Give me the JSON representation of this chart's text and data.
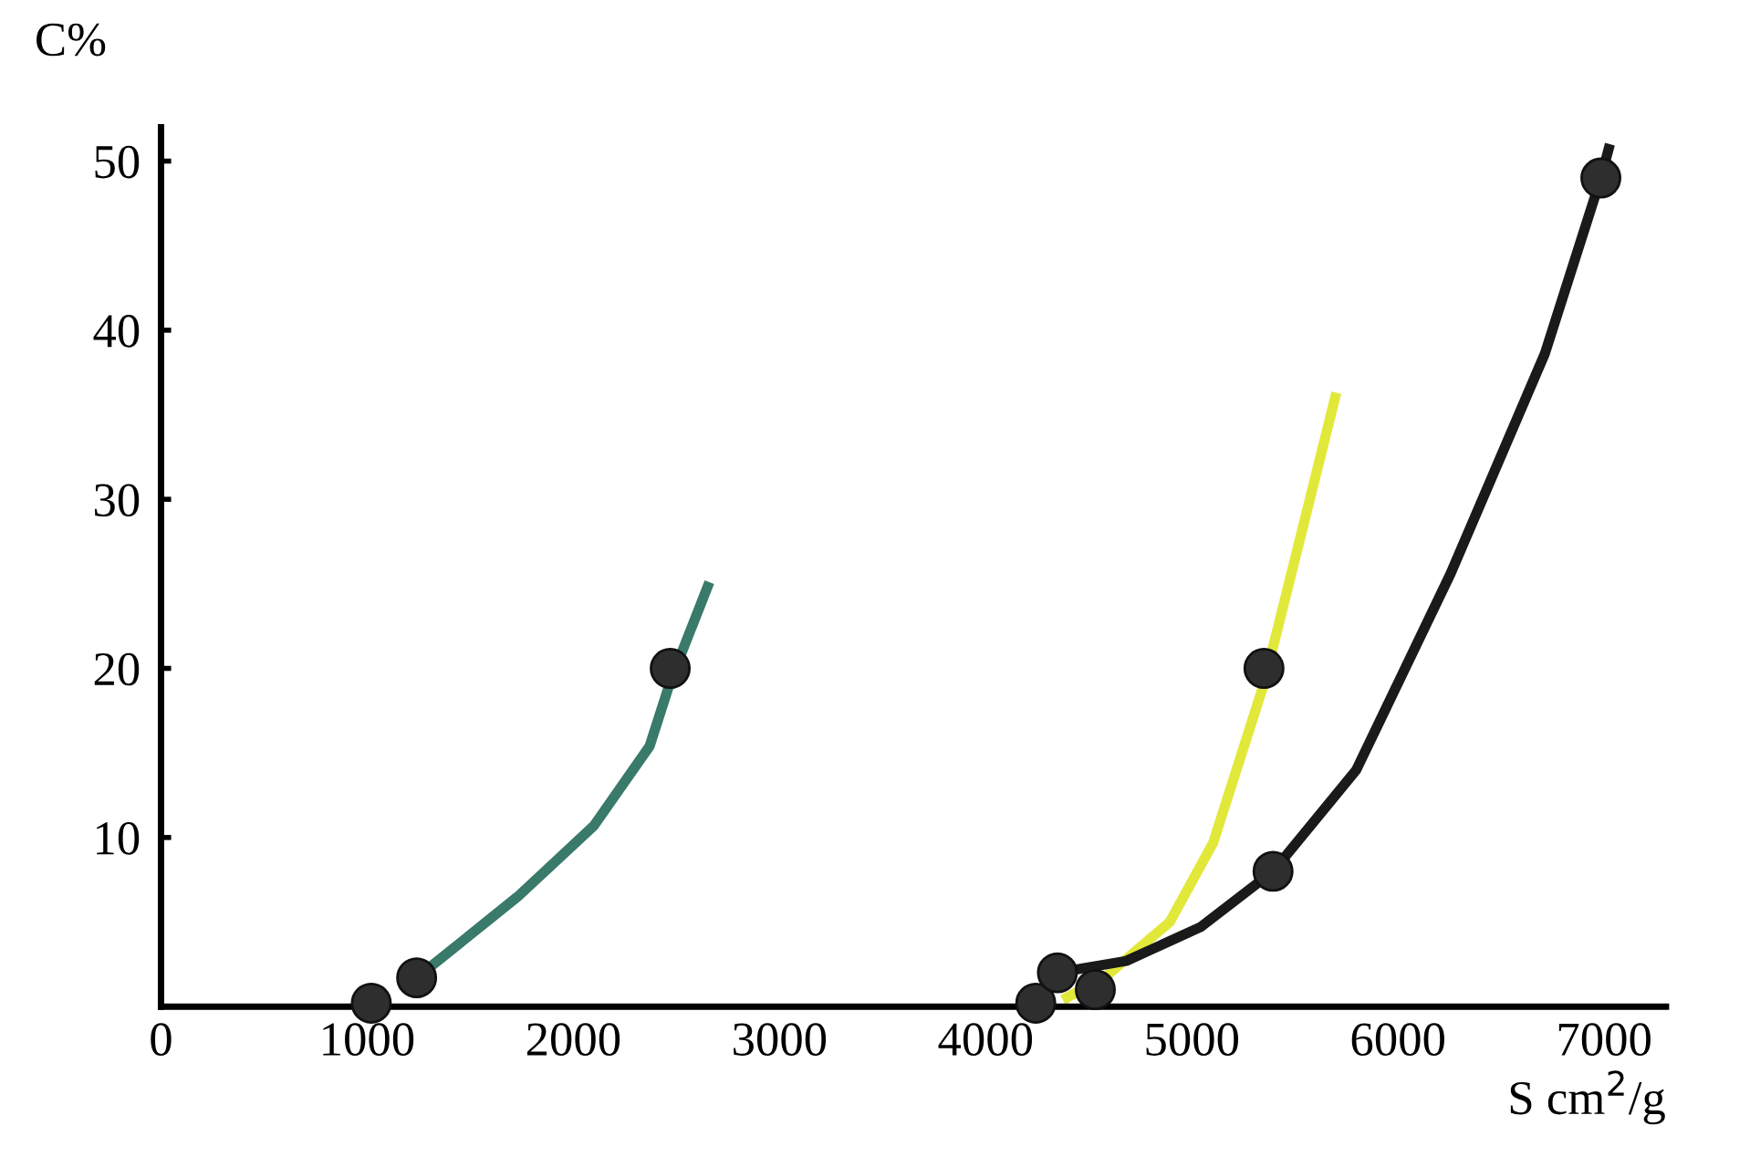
{
  "chart_data": {
    "type": "line",
    "xlabel": "S cm$^{2}$/g",
    "ylabel": "C%",
    "xlim": [
      0,
      7300
    ],
    "ylim": [
      0,
      52
    ],
    "xticks": [
      0,
      1000,
      2000,
      3000,
      4000,
      5000,
      6000,
      7000
    ],
    "yticks": [
      10,
      20,
      30,
      40,
      50
    ],
    "grid": false,
    "legend": false,
    "marker": "none",
    "series": [
      {
        "color": "#3a7a6a",
        "x": [
          1240,
          1730,
          2100,
          2370,
          2470,
          2660
        ],
        "values": [
          1.7,
          6.5,
          10.7,
          15.4,
          19.2,
          25.1
        ]
      },
      {
        "color": "#e2e83a",
        "x": [
          4374,
          4585,
          4893,
          5104,
          5350,
          5701
        ],
        "values": [
          0.4,
          1.8,
          5,
          9.7,
          19.1,
          36.3
        ]
      },
      {
        "color": "#1a1a1a",
        "x": [
          4348,
          4682,
          5042,
          5394,
          5798,
          6255,
          6712,
          6984,
          7028
        ],
        "values": [
          2,
          2.7,
          4.7,
          8,
          14,
          25.6,
          38.6,
          49,
          51
        ]
      },
      {
        "type": "scatter",
        "color": "#2e2e2e",
        "marker": "circle",
        "x": [
          1020,
          1240,
          2470,
          4243,
          4348,
          4532,
          5350,
          5394,
          6984
        ],
        "values": [
          0.2,
          1.7,
          20,
          0.2,
          2,
          1,
          20,
          8,
          49
        ]
      }
    ]
  }
}
